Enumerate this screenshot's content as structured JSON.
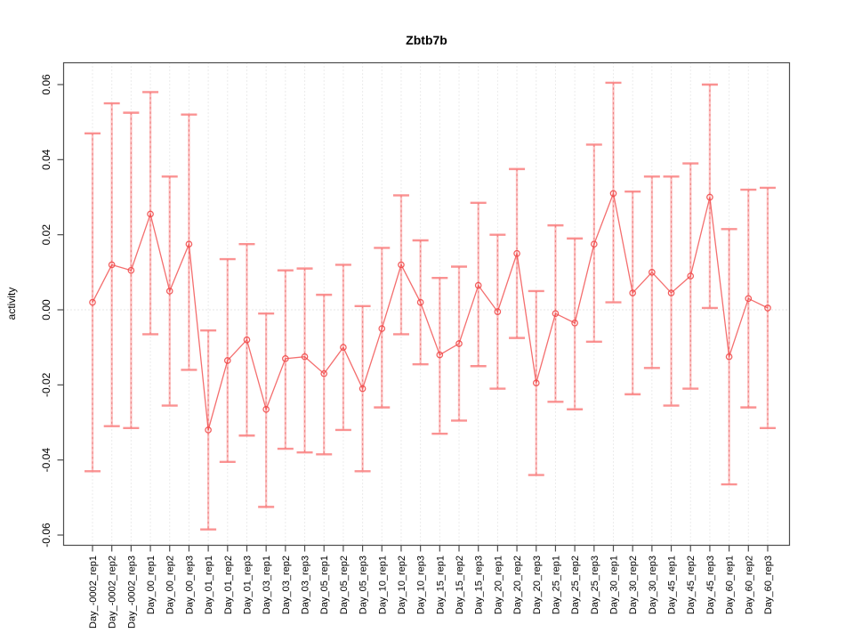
{
  "title": "Zbtb7b",
  "ylabel": "activity",
  "chart_data": {
    "type": "line",
    "title": "Zbtb7b",
    "xlabel": "",
    "ylabel": "activity",
    "legend": "none",
    "grid": "vertical dotted gridline at every category; horizontal dotted line at y=0",
    "ylim": [
      -0.0655,
      0.0655
    ],
    "yticks": [
      0.06,
      0.04,
      0.02,
      0.0,
      -0.02,
      -0.04,
      -0.06
    ],
    "categories": [
      "Day_-0002_rep1",
      "Day_-0002_rep2",
      "Day_-0002_rep3",
      "Day_00_rep1",
      "Day_00_rep2",
      "Day_00_rep3",
      "Day_01_rep1",
      "Day_01_rep2",
      "Day_01_rep3",
      "Day_03_rep1",
      "Day_03_rep2",
      "Day_03_rep3",
      "Day_05_rep1",
      "Day_05_rep2",
      "Day_05_rep3",
      "Day_10_rep1",
      "Day_10_rep2",
      "Day_10_rep3",
      "Day_15_rep1",
      "Day_15_rep2",
      "Day_15_rep3",
      "Day_20_rep1",
      "Day_20_rep2",
      "Day_20_rep3",
      "Day_25_rep1",
      "Day_25_rep2",
      "Day_25_rep3",
      "Day_30_rep1",
      "Day_30_rep2",
      "Day_30_rep3",
      "Day_45_rep1",
      "Day_45_rep2",
      "Day_45_rep3",
      "Day_60_rep1",
      "Day_60_rep2",
      "Day_60_rep3"
    ],
    "series": [
      {
        "name": "activity",
        "marker": "open-circle",
        "values": [
          0.002,
          0.012,
          0.0105,
          0.0255,
          0.005,
          0.0175,
          -0.032,
          -0.0135,
          -0.008,
          -0.0265,
          -0.013,
          -0.0125,
          -0.017,
          -0.01,
          -0.021,
          -0.005,
          0.012,
          0.002,
          -0.012,
          -0.009,
          0.0065,
          -0.0005,
          0.015,
          -0.0195,
          -0.001,
          -0.0035,
          0.0175,
          0.031,
          0.0045,
          0.01,
          0.0045,
          0.009,
          0.03,
          -0.0125,
          0.003,
          0.0005
        ],
        "error_low": [
          -0.043,
          -0.031,
          -0.0315,
          -0.0065,
          -0.0255,
          -0.016,
          -0.0585,
          -0.0405,
          -0.0335,
          -0.0525,
          -0.037,
          -0.038,
          -0.0385,
          -0.032,
          -0.043,
          -0.026,
          -0.0065,
          -0.0145,
          -0.033,
          -0.0295,
          -0.015,
          -0.021,
          -0.0075,
          -0.044,
          -0.0245,
          -0.0265,
          -0.0085,
          0.002,
          -0.0225,
          -0.0155,
          -0.0255,
          -0.021,
          0.0005,
          -0.0465,
          -0.026,
          -0.0315
        ],
        "error_high": [
          0.047,
          0.055,
          0.0525,
          0.058,
          0.0355,
          0.052,
          -0.0055,
          0.0135,
          0.0175,
          -0.001,
          0.0105,
          0.011,
          0.004,
          0.012,
          0.001,
          0.0165,
          0.0305,
          0.0185,
          0.0085,
          0.0115,
          0.0285,
          0.02,
          0.0375,
          0.005,
          0.0225,
          0.019,
          0.044,
          0.0605,
          0.0315,
          0.0355,
          0.0355,
          0.039,
          0.06,
          0.0215,
          0.032,
          0.0325
        ]
      }
    ],
    "colors": {
      "series": "#f14a4a",
      "error_bar": "#fb9191",
      "error_cap": "#f97f7f",
      "gridline": "#d4d4d4",
      "zero_line": "#d0d0d0",
      "axis_box": "#4d4d4d",
      "text": "#000000",
      "background": "#ffffff"
    }
  }
}
